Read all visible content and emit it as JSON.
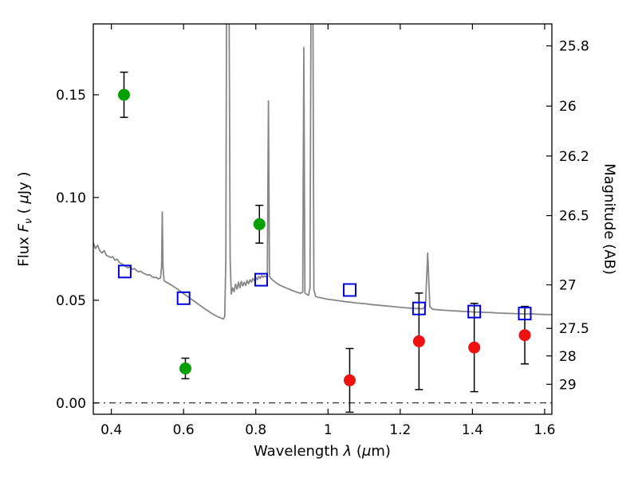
{
  "chart_data": {
    "type": "scatter",
    "title": "",
    "xlabel": "Wavelength λ (μm)",
    "ylabel_left": "Flux Fν ( μJy )",
    "ylabel_right": "Magnitude (AB)",
    "xlabel_parts": {
      "prefix": "Wavelength ",
      "lambda": "λ",
      "mid": " (",
      "mu": "μ",
      "suffix": "m)"
    },
    "ylabel_left_parts": {
      "prefix": "Flux ",
      "math_f": "F",
      "math_sub": "ν",
      "mid": " ( ",
      "mu": "μ",
      "suffix": "Jy )"
    },
    "xlim": [
      0.35,
      1.62
    ],
    "ylim": [
      -0.0055,
      0.1845
    ],
    "grid": false,
    "legend": "none",
    "xticks": [
      {
        "value": 0.4,
        "label": "0.4"
      },
      {
        "value": 0.6,
        "label": "0.6"
      },
      {
        "value": 0.8,
        "label": "0.8"
      },
      {
        "value": 1.0,
        "label": "1"
      },
      {
        "value": 1.2,
        "label": "1.2"
      },
      {
        "value": 1.4,
        "label": "1.4"
      },
      {
        "value": 1.6,
        "label": "1.6"
      }
    ],
    "yticks_left": [
      {
        "value": 0.0,
        "label": "0.00"
      },
      {
        "value": 0.05,
        "label": "0.05"
      },
      {
        "value": 0.1,
        "label": "0.10"
      },
      {
        "value": 0.15,
        "label": "0.15"
      }
    ],
    "yticks_right_magnitude": [
      {
        "label": "25.8",
        "flux": 0.1738
      },
      {
        "label": "26",
        "flux": 0.1445
      },
      {
        "label": "26.2",
        "flux": 0.1202
      },
      {
        "label": "26.5",
        "flux": 0.0912
      },
      {
        "label": "27",
        "flux": 0.0575
      },
      {
        "label": "27.5",
        "flux": 0.0363
      },
      {
        "label": "28",
        "flux": 0.0229
      },
      {
        "label": "29",
        "flux": 0.0091
      }
    ],
    "zero_line": {
      "y": 0.0,
      "style": "dash-dot",
      "color": "#000000"
    },
    "spectrum": {
      "name": "model-spectrum",
      "color": "#878787",
      "points": [
        [
          0.35,
          0.078
        ],
        [
          0.356,
          0.0752
        ],
        [
          0.362,
          0.0768
        ],
        [
          0.368,
          0.0741
        ],
        [
          0.374,
          0.073
        ],
        [
          0.38,
          0.0742
        ],
        [
          0.386,
          0.0718
        ],
        [
          0.392,
          0.0714
        ],
        [
          0.398,
          0.0708
        ],
        [
          0.404,
          0.0712
        ],
        [
          0.41,
          0.0695
        ],
        [
          0.416,
          0.07
        ],
        [
          0.422,
          0.0684
        ],
        [
          0.428,
          0.0678
        ],
        [
          0.434,
          0.0672
        ],
        [
          0.44,
          0.0664
        ],
        [
          0.446,
          0.0658
        ],
        [
          0.452,
          0.0663
        ],
        [
          0.458,
          0.065
        ],
        [
          0.464,
          0.0655
        ],
        [
          0.47,
          0.0644
        ],
        [
          0.476,
          0.0638
        ],
        [
          0.482,
          0.0641
        ],
        [
          0.488,
          0.0632
        ],
        [
          0.494,
          0.0628
        ],
        [
          0.5,
          0.0622
        ],
        [
          0.506,
          0.0625
        ],
        [
          0.512,
          0.0615
        ],
        [
          0.518,
          0.061
        ],
        [
          0.524,
          0.0612
        ],
        [
          0.53,
          0.0604
        ],
        [
          0.536,
          0.0608
        ],
        [
          0.539,
          0.066
        ],
        [
          0.541,
          0.093
        ],
        [
          0.543,
          0.0662
        ],
        [
          0.546,
          0.0596
        ],
        [
          0.552,
          0.0588
        ],
        [
          0.558,
          0.0582
        ],
        [
          0.564,
          0.0576
        ],
        [
          0.57,
          0.057
        ],
        [
          0.576,
          0.0562
        ],
        [
          0.582,
          0.0556
        ],
        [
          0.588,
          0.0548
        ],
        [
          0.594,
          0.054
        ],
        [
          0.6,
          0.0532
        ],
        [
          0.608,
          0.0522
        ],
        [
          0.616,
          0.0512
        ],
        [
          0.624,
          0.0502
        ],
        [
          0.632,
          0.0492
        ],
        [
          0.64,
          0.0482
        ],
        [
          0.648,
          0.0472
        ],
        [
          0.656,
          0.0462
        ],
        [
          0.664,
          0.0452
        ],
        [
          0.672,
          0.0443
        ],
        [
          0.68,
          0.0434
        ],
        [
          0.688,
          0.0426
        ],
        [
          0.696,
          0.0419
        ],
        [
          0.704,
          0.0413
        ],
        [
          0.71,
          0.0409
        ],
        [
          0.714,
          0.042
        ],
        [
          0.717,
          0.07
        ],
        [
          0.719,
          0.2
        ],
        [
          0.726,
          0.2
        ],
        [
          0.729,
          0.07
        ],
        [
          0.732,
          0.053
        ],
        [
          0.736,
          0.056
        ],
        [
          0.74,
          0.0542
        ],
        [
          0.744,
          0.0578
        ],
        [
          0.748,
          0.0554
        ],
        [
          0.752,
          0.0588
        ],
        [
          0.756,
          0.056
        ],
        [
          0.76,
          0.0592
        ],
        [
          0.764,
          0.057
        ],
        [
          0.768,
          0.0588
        ],
        [
          0.772,
          0.0572
        ],
        [
          0.776,
          0.0596
        ],
        [
          0.78,
          0.058
        ],
        [
          0.784,
          0.06
        ],
        [
          0.788,
          0.0588
        ],
        [
          0.792,
          0.0606
        ],
        [
          0.796,
          0.0594
        ],
        [
          0.8,
          0.0612
        ],
        [
          0.804,
          0.06
        ],
        [
          0.808,
          0.0616
        ],
        [
          0.812,
          0.0606
        ],
        [
          0.816,
          0.062
        ],
        [
          0.82,
          0.0612
        ],
        [
          0.824,
          0.0618
        ],
        [
          0.828,
          0.0614
        ],
        [
          0.832,
          0.062
        ],
        [
          0.835,
          0.147
        ],
        [
          0.838,
          0.0616
        ],
        [
          0.842,
          0.0606
        ],
        [
          0.848,
          0.0596
        ],
        [
          0.854,
          0.0588
        ],
        [
          0.86,
          0.058
        ],
        [
          0.868,
          0.0572
        ],
        [
          0.876,
          0.0566
        ],
        [
          0.884,
          0.056
        ],
        [
          0.892,
          0.0554
        ],
        [
          0.9,
          0.0548
        ],
        [
          0.908,
          0.0543
        ],
        [
          0.916,
          0.0538
        ],
        [
          0.924,
          0.0534
        ],
        [
          0.93,
          0.054
        ],
        [
          0.933,
          0.173
        ],
        [
          0.936,
          0.0535
        ],
        [
          0.941,
          0.0528
        ],
        [
          0.946,
          0.0524
        ],
        [
          0.95,
          0.056
        ],
        [
          0.953,
          0.2
        ],
        [
          0.958,
          0.2
        ],
        [
          0.961,
          0.055
        ],
        [
          0.966,
          0.0518
        ],
        [
          0.974,
          0.0514
        ],
        [
          0.982,
          0.0511
        ],
        [
          0.99,
          0.0508
        ],
        [
          1.0,
          0.0505
        ],
        [
          1.012,
          0.0502
        ],
        [
          1.024,
          0.0499
        ],
        [
          1.036,
          0.0496
        ],
        [
          1.048,
          0.0493
        ],
        [
          1.06,
          0.0491
        ],
        [
          1.072,
          0.0488
        ],
        [
          1.084,
          0.0486
        ],
        [
          1.096,
          0.0484
        ],
        [
          1.108,
          0.0482
        ],
        [
          1.12,
          0.0479
        ],
        [
          1.132,
          0.0477
        ],
        [
          1.144,
          0.0475
        ],
        [
          1.156,
          0.0473
        ],
        [
          1.168,
          0.0471
        ],
        [
          1.18,
          0.0469
        ],
        [
          1.192,
          0.0467
        ],
        [
          1.204,
          0.0465
        ],
        [
          1.216,
          0.0463
        ],
        [
          1.228,
          0.0462
        ],
        [
          1.24,
          0.046
        ],
        [
          1.252,
          0.0459
        ],
        [
          1.262,
          0.0458
        ],
        [
          1.27,
          0.047
        ],
        [
          1.276,
          0.073
        ],
        [
          1.282,
          0.0468
        ],
        [
          1.29,
          0.0456
        ],
        [
          1.302,
          0.0454
        ],
        [
          1.314,
          0.0452
        ],
        [
          1.326,
          0.0451
        ],
        [
          1.34,
          0.0449
        ],
        [
          1.356,
          0.0448
        ],
        [
          1.372,
          0.0446
        ],
        [
          1.388,
          0.0445
        ],
        [
          1.404,
          0.0443
        ],
        [
          1.42,
          0.0442
        ],
        [
          1.436,
          0.0441
        ],
        [
          1.452,
          0.044
        ],
        [
          1.468,
          0.0438
        ],
        [
          1.484,
          0.0437
        ],
        [
          1.5,
          0.0436
        ],
        [
          1.516,
          0.0435
        ],
        [
          1.532,
          0.0434
        ],
        [
          1.548,
          0.0433
        ],
        [
          1.564,
          0.0434
        ],
        [
          1.58,
          0.0432
        ],
        [
          1.596,
          0.0431
        ],
        [
          1.612,
          0.043
        ],
        [
          1.62,
          0.043
        ]
      ]
    },
    "series": [
      {
        "name": "blue-squares",
        "marker": "open-square",
        "color": "#0000dd",
        "points": [
          {
            "x": 0.437,
            "y": 0.064
          },
          {
            "x": 0.6,
            "y": 0.051
          },
          {
            "x": 0.815,
            "y": 0.06
          },
          {
            "x": 1.06,
            "y": 0.055
          },
          {
            "x": 1.252,
            "y": 0.046
          },
          {
            "x": 1.405,
            "y": 0.0445
          },
          {
            "x": 1.545,
            "y": 0.0435
          }
        ]
      },
      {
        "name": "green-points",
        "marker": "circle",
        "color": "#00a000",
        "points": [
          {
            "x": 0.435,
            "y": 0.15,
            "yerr": 0.011
          },
          {
            "x": 0.605,
            "y": 0.0168,
            "yerr": 0.005
          },
          {
            "x": 0.81,
            "y": 0.087,
            "yerr": 0.0092
          }
        ]
      },
      {
        "name": "red-points",
        "marker": "circle",
        "color": "#ee1111",
        "points": [
          {
            "x": 1.06,
            "y": 0.011,
            "yerr": 0.0155
          },
          {
            "x": 1.252,
            "y": 0.03,
            "yerr": 0.0235
          },
          {
            "x": 1.405,
            "y": 0.027,
            "yerr": 0.0215
          },
          {
            "x": 1.545,
            "y": 0.033,
            "yerr": 0.014
          }
        ]
      }
    ]
  }
}
